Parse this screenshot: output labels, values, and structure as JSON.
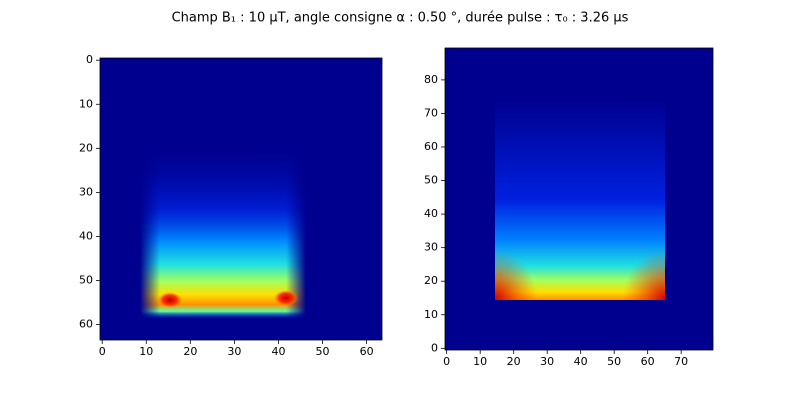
{
  "title": "Champ B₁ : 10 µT,     angle consigne α : 0.50 °,    durée pulse : τ₀ : 3.26 µs",
  "chart_data": [
    {
      "type": "heatmap",
      "xlim": [
        -0.5,
        63.5
      ],
      "ylim": [
        63.5,
        -0.5
      ],
      "xticks": [
        0,
        10,
        20,
        30,
        40,
        50,
        60
      ],
      "yticks": [
        0,
        10,
        20,
        30,
        40,
        50,
        60
      ]
    },
    {
      "type": "heatmap",
      "xlim": [
        -0.5,
        79.5
      ],
      "ylim": [
        -0.5,
        89.5
      ],
      "xticks": [
        0,
        10,
        20,
        30,
        40,
        50,
        60,
        70
      ],
      "yticks": [
        0,
        10,
        20,
        30,
        40,
        50,
        60,
        70,
        80
      ]
    }
  ]
}
